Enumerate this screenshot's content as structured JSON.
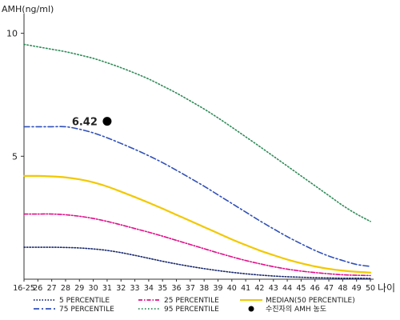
{
  "chart_data": {
    "type": "line",
    "ylabel": "AMH(ng/ml)",
    "xlabel": "나이",
    "ylim": [
      0,
      10.8
    ],
    "yticks": [
      5,
      10
    ],
    "x": [
      "16-25",
      "26",
      "27",
      "28",
      "29",
      "30",
      "31",
      "32",
      "33",
      "34",
      "35",
      "36",
      "37",
      "38",
      "39",
      "40",
      "41",
      "42",
      "43",
      "44",
      "45",
      "46",
      "47",
      "48",
      "49",
      "50"
    ],
    "series": [
      {
        "name": "95 PERCENTILE",
        "color": "#2e8b57",
        "dash": "1.5 2.5",
        "width": 1.6,
        "values": [
          9.55,
          9.45,
          9.35,
          9.25,
          9.12,
          8.98,
          8.8,
          8.6,
          8.38,
          8.14,
          7.86,
          7.57,
          7.25,
          6.92,
          6.56,
          6.18,
          5.79,
          5.4,
          5.0,
          4.6,
          4.2,
          3.8,
          3.4,
          3.0,
          2.65,
          2.35
        ]
      },
      {
        "name": "75 PERCENTILE",
        "color": "#3050b8",
        "dash": "7 3 2 3",
        "width": 1.6,
        "values": [
          6.2,
          6.2,
          6.2,
          6.2,
          6.1,
          5.95,
          5.75,
          5.52,
          5.28,
          5.02,
          4.74,
          4.43,
          4.11,
          3.78,
          3.43,
          3.08,
          2.73,
          2.38,
          2.05,
          1.73,
          1.44,
          1.17,
          0.94,
          0.76,
          0.6,
          0.52
        ]
      },
      {
        "name": "MEDIAN(50 PERCENTILE)",
        "color": "#f2c800",
        "dash": "",
        "width": 2.2,
        "values": [
          4.2,
          4.2,
          4.18,
          4.14,
          4.06,
          3.94,
          3.77,
          3.56,
          3.34,
          3.11,
          2.87,
          2.62,
          2.37,
          2.12,
          1.87,
          1.62,
          1.39,
          1.17,
          0.98,
          0.8,
          0.65,
          0.52,
          0.42,
          0.35,
          0.3,
          0.27
        ]
      },
      {
        "name": "25 PERCENTILE",
        "color": "#e0108a",
        "dash": "5 2 1.5 2",
        "width": 1.6,
        "values": [
          2.65,
          2.65,
          2.65,
          2.62,
          2.56,
          2.47,
          2.35,
          2.21,
          2.06,
          1.91,
          1.75,
          1.58,
          1.41,
          1.24,
          1.07,
          0.91,
          0.76,
          0.63,
          0.51,
          0.41,
          0.33,
          0.27,
          0.22,
          0.18,
          0.16,
          0.15
        ]
      },
      {
        "name": "5 PERCENTILE",
        "color": "#1a2a70",
        "dash": "1.5 2",
        "width": 1.6,
        "values": [
          1.3,
          1.3,
          1.3,
          1.29,
          1.27,
          1.23,
          1.17,
          1.08,
          0.97,
          0.85,
          0.73,
          0.62,
          0.52,
          0.43,
          0.35,
          0.28,
          0.22,
          0.17,
          0.13,
          0.1,
          0.08,
          0.06,
          0.05,
          0.04,
          0.04,
          0.03
        ]
      }
    ],
    "marker": {
      "name": "수진자의 AMH 농도",
      "x": "31",
      "y": 6.42,
      "label": "6.42",
      "color": "#000000"
    },
    "legend": {
      "placement": "bottom",
      "items": [
        {
          "label": "5 PERCENTILE",
          "color": "#1a2a70",
          "dash": "1.5 2",
          "kind": "line"
        },
        {
          "label": "25 PERCENTILE",
          "color": "#e0108a",
          "dash": "5 2 1.5 2",
          "kind": "line"
        },
        {
          "label": "MEDIAN(50 PERCENTILE)",
          "color": "#f2c800",
          "dash": "",
          "kind": "line"
        },
        {
          "label": "75 PERCENTILE",
          "color": "#3050b8",
          "dash": "7 3 2 3",
          "kind": "line"
        },
        {
          "label": "95 PERCENTILE",
          "color": "#2e8b57",
          "dash": "1.5 2.5",
          "kind": "line"
        },
        {
          "label": "수진자의 AMH 농도",
          "color": "#000000",
          "dash": "",
          "kind": "dot"
        }
      ]
    }
  }
}
